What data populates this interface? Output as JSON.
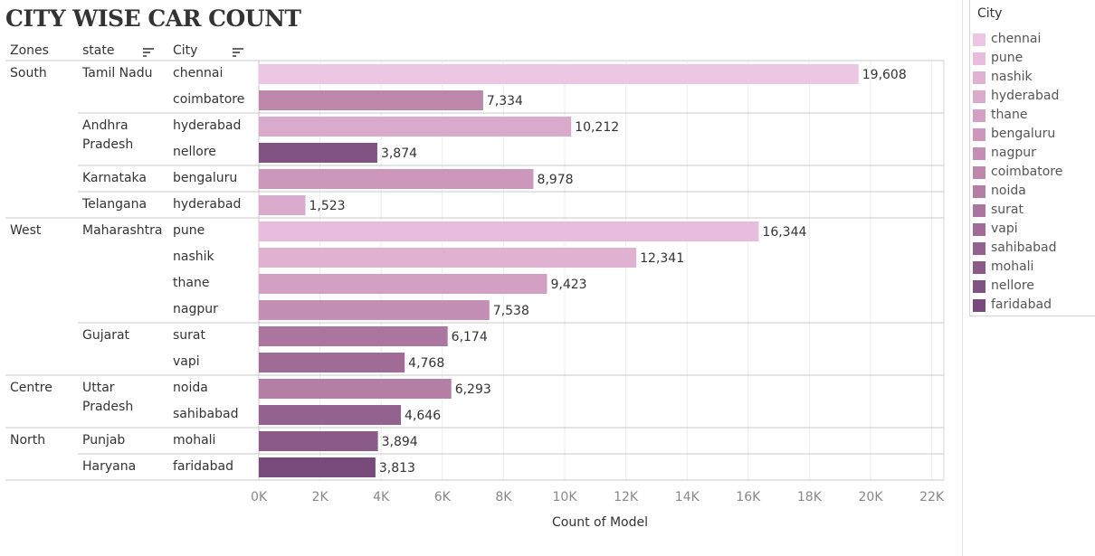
{
  "chart_data": {
    "type": "bar",
    "orientation": "horizontal",
    "title": "CITY WISE CAR COUNT",
    "headers": {
      "zones": "Zones",
      "state": "state",
      "city": "City"
    },
    "xlabel": "Count of Model",
    "xlim": [
      0,
      22000
    ],
    "ticks": [
      0,
      2000,
      4000,
      6000,
      8000,
      10000,
      12000,
      14000,
      16000,
      18000,
      20000,
      22000
    ],
    "tick_labels": [
      "0K",
      "2K",
      "4K",
      "6K",
      "8K",
      "10K",
      "12K",
      "14K",
      "16K",
      "18K",
      "20K",
      "22K"
    ],
    "grid": true,
    "legend_position": "right",
    "zones": [
      {
        "zone": "South",
        "states": [
          {
            "state": "Tamil Nadu",
            "cities": [
              {
                "city": "chennai",
                "value": 19608
              },
              {
                "city": "coimbatore",
                "value": 7334
              }
            ]
          },
          {
            "state": "Andhra Pradesh",
            "cities": [
              {
                "city": "hyderabad",
                "value": 10212
              },
              {
                "city": "nellore",
                "value": 3874
              }
            ]
          },
          {
            "state": "Karnataka",
            "cities": [
              {
                "city": "bengaluru",
                "value": 8978
              }
            ]
          },
          {
            "state": "Telangana",
            "cities": [
              {
                "city": "hyderabad",
                "value": 1523
              }
            ]
          }
        ]
      },
      {
        "zone": "West",
        "states": [
          {
            "state": "Maharashtra",
            "cities": [
              {
                "city": "pune",
                "value": 16344
              },
              {
                "city": "nashik",
                "value": 12341
              },
              {
                "city": "thane",
                "value": 9423
              },
              {
                "city": "nagpur",
                "value": 7538
              }
            ]
          },
          {
            "state": "Gujarat",
            "cities": [
              {
                "city": "surat",
                "value": 6174
              },
              {
                "city": "vapi",
                "value": 4768
              }
            ]
          }
        ]
      },
      {
        "zone": "Centre",
        "states": [
          {
            "state": "Uttar Pradesh",
            "cities": [
              {
                "city": "noida",
                "value": 6293
              },
              {
                "city": "sahibabad",
                "value": 4646
              }
            ]
          }
        ]
      },
      {
        "zone": "North",
        "states": [
          {
            "state": "Punjab",
            "cities": [
              {
                "city": "mohali",
                "value": 3894
              }
            ]
          },
          {
            "state": "Haryana",
            "cities": [
              {
                "city": "faridabad",
                "value": 3813
              }
            ]
          }
        ]
      }
    ],
    "legend": {
      "title": "City",
      "items": [
        {
          "name": "chennai",
          "color": "#ecc7e3"
        },
        {
          "name": "pune",
          "color": "#e8bcdc"
        },
        {
          "name": "nashik",
          "color": "#e1b1d2"
        },
        {
          "name": "hyderabad",
          "color": "#d9aacb"
        },
        {
          "name": "thane",
          "color": "#d39fc3"
        },
        {
          "name": "bengaluru",
          "color": "#cc97bb"
        },
        {
          "name": "nagpur",
          "color": "#c58fb5"
        },
        {
          "name": "coimbatore",
          "color": "#bd87ac"
        },
        {
          "name": "noida",
          "color": "#b57ea5"
        },
        {
          "name": "surat",
          "color": "#aa759e"
        },
        {
          "name": "vapi",
          "color": "#a06c97"
        },
        {
          "name": "sahibabad",
          "color": "#94628f"
        },
        {
          "name": "mohali",
          "color": "#8a5a88"
        },
        {
          "name": "nellore",
          "color": "#815382"
        },
        {
          "name": "faridabad",
          "color": "#784a7b"
        }
      ]
    }
  }
}
